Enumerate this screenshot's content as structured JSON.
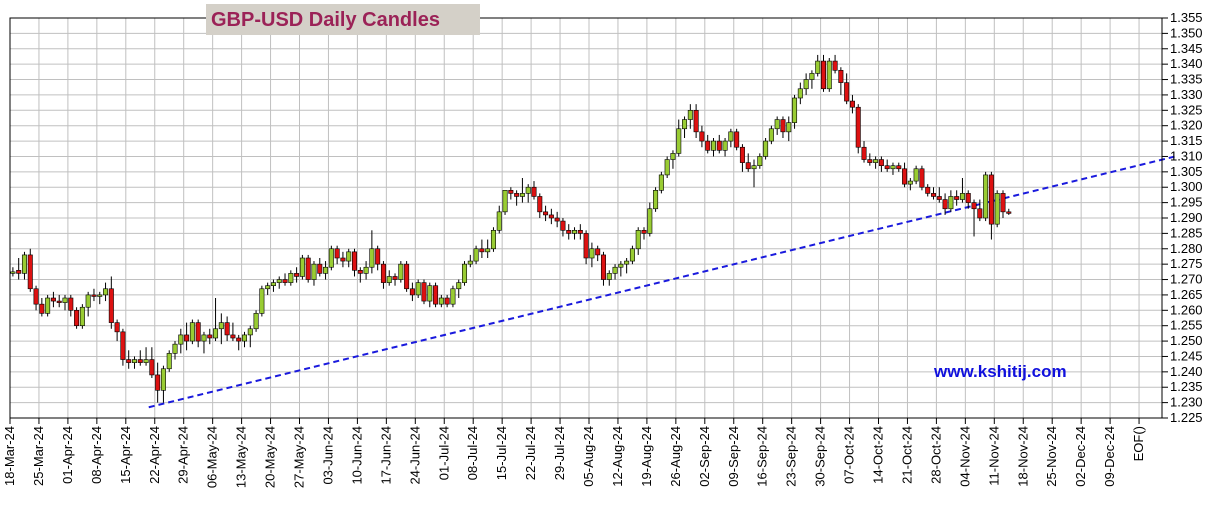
{
  "chart_data": {
    "type": "candlestick",
    "title": "GBP-USD Daily Candles",
    "watermark": "www.kshitij.com",
    "y_axis": {
      "side": "right",
      "ylim": [
        1.225,
        1.355
      ],
      "ticks": [
        "1.225",
        "1.230",
        "1.235",
        "1.240",
        "1.245",
        "1.250",
        "1.255",
        "1.260",
        "1.265",
        "1.270",
        "1.275",
        "1.280",
        "1.285",
        "1.290",
        "1.295",
        "1.300",
        "1.305",
        "1.310",
        "1.315",
        "1.320",
        "1.325",
        "1.330",
        "1.335",
        "1.340",
        "1.345",
        "1.350",
        "1.355"
      ]
    },
    "x_axis": {
      "tick_labels": [
        "18-Mar-24",
        "25-Mar-24",
        "01-Apr-24",
        "08-Apr-24",
        "15-Apr-24",
        "22-Apr-24",
        "29-Apr-24",
        "06-May-24",
        "13-May-24",
        "20-May-24",
        "27-May-24",
        "03-Jun-24",
        "10-Jun-24",
        "17-Jun-24",
        "24-Jun-24",
        "01-Jul-24",
        "08-Jul-24",
        "15-Jul-24",
        "22-Jul-24",
        "29-Jul-24",
        "05-Aug-24",
        "12-Aug-24",
        "19-Aug-24",
        "26-Aug-24",
        "02-Sep-24",
        "09-Sep-24",
        "16-Sep-24",
        "23-Sep-24",
        "30-Sep-24",
        "07-Oct-24",
        "14-Oct-24",
        "21-Oct-24",
        "28-Oct-24",
        "04-Nov-24",
        "11-Nov-24",
        "18-Nov-24",
        "25-Nov-24",
        "02-Dec-24",
        "09-Dec-24",
        "EOF()"
      ]
    },
    "grid": true,
    "colors": {
      "up": "#99cc33",
      "down": "#dd1111",
      "wick": "#000000",
      "trendline": "#1a1add",
      "grid": "#c0c0c0",
      "title_bg": "#d4d0c8"
    },
    "trendline": {
      "style": "dashed",
      "points": [
        {
          "x": "22-Apr-24",
          "y": 1.2285
        },
        {
          "x": "EOF()",
          "y": 1.31
        }
      ]
    },
    "candles": [
      {
        "o": 1.272,
        "h": 1.274,
        "l": 1.271,
        "c": 1.2725
      },
      {
        "o": 1.273,
        "h": 1.277,
        "l": 1.27,
        "c": 1.272
      },
      {
        "o": 1.272,
        "h": 1.279,
        "l": 1.27,
        "c": 1.278
      },
      {
        "o": 1.278,
        "h": 1.28,
        "l": 1.266,
        "c": 1.267
      },
      {
        "o": 1.267,
        "h": 1.268,
        "l": 1.26,
        "c": 1.262
      },
      {
        "o": 1.262,
        "h": 1.264,
        "l": 1.258,
        "c": 1.259
      },
      {
        "o": 1.259,
        "h": 1.265,
        "l": 1.258,
        "c": 1.264
      },
      {
        "o": 1.264,
        "h": 1.266,
        "l": 1.261,
        "c": 1.263
      },
      {
        "o": 1.263,
        "h": 1.265,
        "l": 1.261,
        "c": 1.2625
      },
      {
        "o": 1.2625,
        "h": 1.265,
        "l": 1.26,
        "c": 1.264
      },
      {
        "o": 1.264,
        "h": 1.265,
        "l": 1.258,
        "c": 1.26
      },
      {
        "o": 1.26,
        "h": 1.261,
        "l": 1.254,
        "c": 1.255
      },
      {
        "o": 1.255,
        "h": 1.262,
        "l": 1.254,
        "c": 1.261
      },
      {
        "o": 1.261,
        "h": 1.266,
        "l": 1.258,
        "c": 1.265
      },
      {
        "o": 1.265,
        "h": 1.267,
        "l": 1.263,
        "c": 1.2645
      },
      {
        "o": 1.2645,
        "h": 1.266,
        "l": 1.262,
        "c": 1.265
      },
      {
        "o": 1.265,
        "h": 1.269,
        "l": 1.263,
        "c": 1.267
      },
      {
        "o": 1.267,
        "h": 1.271,
        "l": 1.254,
        "c": 1.256
      },
      {
        "o": 1.256,
        "h": 1.257,
        "l": 1.25,
        "c": 1.253
      },
      {
        "o": 1.253,
        "h": 1.254,
        "l": 1.242,
        "c": 1.244
      },
      {
        "o": 1.244,
        "h": 1.247,
        "l": 1.241,
        "c": 1.243
      },
      {
        "o": 1.243,
        "h": 1.245,
        "l": 1.241,
        "c": 1.244
      },
      {
        "o": 1.244,
        "h": 1.247,
        "l": 1.242,
        "c": 1.243
      },
      {
        "o": 1.243,
        "h": 1.248,
        "l": 1.242,
        "c": 1.244
      },
      {
        "o": 1.244,
        "h": 1.248,
        "l": 1.238,
        "c": 1.239
      },
      {
        "o": 1.239,
        "h": 1.243,
        "l": 1.23,
        "c": 1.234
      },
      {
        "o": 1.234,
        "h": 1.242,
        "l": 1.23,
        "c": 1.241
      },
      {
        "o": 1.241,
        "h": 1.247,
        "l": 1.24,
        "c": 1.246
      },
      {
        "o": 1.246,
        "h": 1.25,
        "l": 1.244,
        "c": 1.249
      },
      {
        "o": 1.249,
        "h": 1.254,
        "l": 1.246,
        "c": 1.252
      },
      {
        "o": 1.252,
        "h": 1.256,
        "l": 1.247,
        "c": 1.25
      },
      {
        "o": 1.25,
        "h": 1.257,
        "l": 1.249,
        "c": 1.256
      },
      {
        "o": 1.256,
        "h": 1.257,
        "l": 1.248,
        "c": 1.25
      },
      {
        "o": 1.25,
        "h": 1.253,
        "l": 1.246,
        "c": 1.252
      },
      {
        "o": 1.252,
        "h": 1.254,
        "l": 1.249,
        "c": 1.251
      },
      {
        "o": 1.251,
        "h": 1.264,
        "l": 1.25,
        "c": 1.254
      },
      {
        "o": 1.254,
        "h": 1.259,
        "l": 1.249,
        "c": 1.256
      },
      {
        "o": 1.256,
        "h": 1.258,
        "l": 1.25,
        "c": 1.252
      },
      {
        "o": 1.252,
        "h": 1.256,
        "l": 1.25,
        "c": 1.251
      },
      {
        "o": 1.251,
        "h": 1.252,
        "l": 1.247,
        "c": 1.25
      },
      {
        "o": 1.25,
        "h": 1.253,
        "l": 1.248,
        "c": 1.252
      },
      {
        "o": 1.252,
        "h": 1.255,
        "l": 1.248,
        "c": 1.254
      },
      {
        "o": 1.254,
        "h": 1.26,
        "l": 1.253,
        "c": 1.259
      },
      {
        "o": 1.259,
        "h": 1.268,
        "l": 1.258,
        "c": 1.267
      },
      {
        "o": 1.267,
        "h": 1.269,
        "l": 1.265,
        "c": 1.268
      },
      {
        "o": 1.268,
        "h": 1.27,
        "l": 1.266,
        "c": 1.269
      },
      {
        "o": 1.269,
        "h": 1.271,
        "l": 1.267,
        "c": 1.27
      },
      {
        "o": 1.27,
        "h": 1.272,
        "l": 1.268,
        "c": 1.269
      },
      {
        "o": 1.269,
        "h": 1.273,
        "l": 1.268,
        "c": 1.272
      },
      {
        "o": 1.272,
        "h": 1.274,
        "l": 1.269,
        "c": 1.271
      },
      {
        "o": 1.271,
        "h": 1.278,
        "l": 1.27,
        "c": 1.277
      },
      {
        "o": 1.277,
        "h": 1.278,
        "l": 1.269,
        "c": 1.27
      },
      {
        "o": 1.27,
        "h": 1.276,
        "l": 1.268,
        "c": 1.275
      },
      {
        "o": 1.275,
        "h": 1.277,
        "l": 1.271,
        "c": 1.272
      },
      {
        "o": 1.272,
        "h": 1.276,
        "l": 1.27,
        "c": 1.274
      },
      {
        "o": 1.274,
        "h": 1.281,
        "l": 1.273,
        "c": 1.28
      },
      {
        "o": 1.28,
        "h": 1.281,
        "l": 1.275,
        "c": 1.277
      },
      {
        "o": 1.277,
        "h": 1.279,
        "l": 1.274,
        "c": 1.276
      },
      {
        "o": 1.276,
        "h": 1.28,
        "l": 1.274,
        "c": 1.279
      },
      {
        "o": 1.279,
        "h": 1.28,
        "l": 1.271,
        "c": 1.273
      },
      {
        "o": 1.273,
        "h": 1.274,
        "l": 1.269,
        "c": 1.272
      },
      {
        "o": 1.272,
        "h": 1.276,
        "l": 1.27,
        "c": 1.274
      },
      {
        "o": 1.274,
        "h": 1.286,
        "l": 1.272,
        "c": 1.28
      },
      {
        "o": 1.28,
        "h": 1.281,
        "l": 1.273,
        "c": 1.275
      },
      {
        "o": 1.275,
        "h": 1.276,
        "l": 1.267,
        "c": 1.269
      },
      {
        "o": 1.269,
        "h": 1.273,
        "l": 1.268,
        "c": 1.271
      },
      {
        "o": 1.271,
        "h": 1.272,
        "l": 1.268,
        "c": 1.27
      },
      {
        "o": 1.27,
        "h": 1.276,
        "l": 1.269,
        "c": 1.275
      },
      {
        "o": 1.275,
        "h": 1.276,
        "l": 1.266,
        "c": 1.267
      },
      {
        "o": 1.267,
        "h": 1.269,
        "l": 1.263,
        "c": 1.265
      },
      {
        "o": 1.265,
        "h": 1.27,
        "l": 1.264,
        "c": 1.269
      },
      {
        "o": 1.269,
        "h": 1.27,
        "l": 1.262,
        "c": 1.263
      },
      {
        "o": 1.263,
        "h": 1.269,
        "l": 1.261,
        "c": 1.268
      },
      {
        "o": 1.268,
        "h": 1.269,
        "l": 1.261,
        "c": 1.262
      },
      {
        "o": 1.262,
        "h": 1.265,
        "l": 1.261,
        "c": 1.264
      },
      {
        "o": 1.264,
        "h": 1.265,
        "l": 1.261,
        "c": 1.262
      },
      {
        "o": 1.262,
        "h": 1.268,
        "l": 1.261,
        "c": 1.267
      },
      {
        "o": 1.267,
        "h": 1.27,
        "l": 1.264,
        "c": 1.269
      },
      {
        "o": 1.269,
        "h": 1.276,
        "l": 1.268,
        "c": 1.275
      },
      {
        "o": 1.275,
        "h": 1.278,
        "l": 1.274,
        "c": 1.276
      },
      {
        "o": 1.276,
        "h": 1.281,
        "l": 1.275,
        "c": 1.28
      },
      {
        "o": 1.28,
        "h": 1.283,
        "l": 1.277,
        "c": 1.279
      },
      {
        "o": 1.279,
        "h": 1.283,
        "l": 1.277,
        "c": 1.28
      },
      {
        "o": 1.28,
        "h": 1.287,
        "l": 1.279,
        "c": 1.286
      },
      {
        "o": 1.286,
        "h": 1.294,
        "l": 1.285,
        "c": 1.292
      },
      {
        "o": 1.292,
        "h": 1.299,
        "l": 1.291,
        "c": 1.299
      },
      {
        "o": 1.299,
        "h": 1.3,
        "l": 1.296,
        "c": 1.298
      },
      {
        "o": 1.298,
        "h": 1.299,
        "l": 1.294,
        "c": 1.297
      },
      {
        "o": 1.297,
        "h": 1.303,
        "l": 1.295,
        "c": 1.298
      },
      {
        "o": 1.298,
        "h": 1.301,
        "l": 1.295,
        "c": 1.3
      },
      {
        "o": 1.3,
        "h": 1.302,
        "l": 1.296,
        "c": 1.297
      },
      {
        "o": 1.297,
        "h": 1.298,
        "l": 1.29,
        "c": 1.292
      },
      {
        "o": 1.292,
        "h": 1.294,
        "l": 1.289,
        "c": 1.291
      },
      {
        "o": 1.291,
        "h": 1.293,
        "l": 1.288,
        "c": 1.29
      },
      {
        "o": 1.29,
        "h": 1.292,
        "l": 1.287,
        "c": 1.289
      },
      {
        "o": 1.289,
        "h": 1.29,
        "l": 1.284,
        "c": 1.286
      },
      {
        "o": 1.286,
        "h": 1.288,
        "l": 1.283,
        "c": 1.285
      },
      {
        "o": 1.285,
        "h": 1.287,
        "l": 1.283,
        "c": 1.286
      },
      {
        "o": 1.286,
        "h": 1.288,
        "l": 1.283,
        "c": 1.285
      },
      {
        "o": 1.285,
        "h": 1.286,
        "l": 1.275,
        "c": 1.277
      },
      {
        "o": 1.277,
        "h": 1.282,
        "l": 1.274,
        "c": 1.28
      },
      {
        "o": 1.28,
        "h": 1.281,
        "l": 1.276,
        "c": 1.278
      },
      {
        "o": 1.278,
        "h": 1.279,
        "l": 1.268,
        "c": 1.27
      },
      {
        "o": 1.27,
        "h": 1.273,
        "l": 1.268,
        "c": 1.272
      },
      {
        "o": 1.272,
        "h": 1.275,
        "l": 1.27,
        "c": 1.274
      },
      {
        "o": 1.274,
        "h": 1.276,
        "l": 1.271,
        "c": 1.275
      },
      {
        "o": 1.275,
        "h": 1.277,
        "l": 1.272,
        "c": 1.276
      },
      {
        "o": 1.276,
        "h": 1.281,
        "l": 1.275,
        "c": 1.28
      },
      {
        "o": 1.28,
        "h": 1.287,
        "l": 1.278,
        "c": 1.286
      },
      {
        "o": 1.286,
        "h": 1.287,
        "l": 1.283,
        "c": 1.285
      },
      {
        "o": 1.285,
        "h": 1.295,
        "l": 1.284,
        "c": 1.293
      },
      {
        "o": 1.293,
        "h": 1.3,
        "l": 1.292,
        "c": 1.299
      },
      {
        "o": 1.299,
        "h": 1.305,
        "l": 1.298,
        "c": 1.304
      },
      {
        "o": 1.304,
        "h": 1.31,
        "l": 1.303,
        "c": 1.309
      },
      {
        "o": 1.309,
        "h": 1.312,
        "l": 1.306,
        "c": 1.311
      },
      {
        "o": 1.311,
        "h": 1.322,
        "l": 1.31,
        "c": 1.319
      },
      {
        "o": 1.319,
        "h": 1.323,
        "l": 1.316,
        "c": 1.322
      },
      {
        "o": 1.322,
        "h": 1.327,
        "l": 1.319,
        "c": 1.325
      },
      {
        "o": 1.325,
        "h": 1.327,
        "l": 1.316,
        "c": 1.318
      },
      {
        "o": 1.318,
        "h": 1.32,
        "l": 1.313,
        "c": 1.315
      },
      {
        "o": 1.315,
        "h": 1.317,
        "l": 1.311,
        "c": 1.312
      },
      {
        "o": 1.312,
        "h": 1.316,
        "l": 1.31,
        "c": 1.315
      },
      {
        "o": 1.315,
        "h": 1.317,
        "l": 1.311,
        "c": 1.312
      },
      {
        "o": 1.312,
        "h": 1.316,
        "l": 1.31,
        "c": 1.315
      },
      {
        "o": 1.315,
        "h": 1.319,
        "l": 1.313,
        "c": 1.318
      },
      {
        "o": 1.318,
        "h": 1.319,
        "l": 1.312,
        "c": 1.313
      },
      {
        "o": 1.313,
        "h": 1.314,
        "l": 1.305,
        "c": 1.308
      },
      {
        "o": 1.308,
        "h": 1.311,
        "l": 1.305,
        "c": 1.306
      },
      {
        "o": 1.306,
        "h": 1.309,
        "l": 1.3,
        "c": 1.307
      },
      {
        "o": 1.307,
        "h": 1.311,
        "l": 1.306,
        "c": 1.31
      },
      {
        "o": 1.31,
        "h": 1.316,
        "l": 1.309,
        "c": 1.315
      },
      {
        "o": 1.315,
        "h": 1.32,
        "l": 1.314,
        "c": 1.319
      },
      {
        "o": 1.319,
        "h": 1.323,
        "l": 1.317,
        "c": 1.322
      },
      {
        "o": 1.322,
        "h": 1.323,
        "l": 1.316,
        "c": 1.318
      },
      {
        "o": 1.318,
        "h": 1.323,
        "l": 1.315,
        "c": 1.321
      },
      {
        "o": 1.321,
        "h": 1.33,
        "l": 1.319,
        "c": 1.329
      },
      {
        "o": 1.329,
        "h": 1.334,
        "l": 1.327,
        "c": 1.332
      },
      {
        "o": 1.332,
        "h": 1.337,
        "l": 1.33,
        "c": 1.335
      },
      {
        "o": 1.335,
        "h": 1.338,
        "l": 1.332,
        "c": 1.337
      },
      {
        "o": 1.337,
        "h": 1.343,
        "l": 1.336,
        "c": 1.341
      },
      {
        "o": 1.341,
        "h": 1.343,
        "l": 1.331,
        "c": 1.332
      },
      {
        "o": 1.332,
        "h": 1.342,
        "l": 1.331,
        "c": 1.341
      },
      {
        "o": 1.341,
        "h": 1.343,
        "l": 1.337,
        "c": 1.338
      },
      {
        "o": 1.338,
        "h": 1.339,
        "l": 1.33,
        "c": 1.334
      },
      {
        "o": 1.334,
        "h": 1.337,
        "l": 1.327,
        "c": 1.328
      },
      {
        "o": 1.328,
        "h": 1.33,
        "l": 1.324,
        "c": 1.326
      },
      {
        "o": 1.326,
        "h": 1.327,
        "l": 1.311,
        "c": 1.313
      },
      {
        "o": 1.313,
        "h": 1.315,
        "l": 1.308,
        "c": 1.309
      },
      {
        "o": 1.309,
        "h": 1.311,
        "l": 1.307,
        "c": 1.308
      },
      {
        "o": 1.308,
        "h": 1.31,
        "l": 1.306,
        "c": 1.309
      },
      {
        "o": 1.309,
        "h": 1.31,
        "l": 1.305,
        "c": 1.307
      },
      {
        "o": 1.307,
        "h": 1.309,
        "l": 1.305,
        "c": 1.306
      },
      {
        "o": 1.306,
        "h": 1.308,
        "l": 1.304,
        "c": 1.307
      },
      {
        "o": 1.307,
        "h": 1.308,
        "l": 1.305,
        "c": 1.306
      },
      {
        "o": 1.306,
        "h": 1.308,
        "l": 1.3,
        "c": 1.301
      },
      {
        "o": 1.301,
        "h": 1.303,
        "l": 1.299,
        "c": 1.302
      },
      {
        "o": 1.302,
        "h": 1.307,
        "l": 1.301,
        "c": 1.306
      },
      {
        "o": 1.306,
        "h": 1.307,
        "l": 1.299,
        "c": 1.3
      },
      {
        "o": 1.3,
        "h": 1.301,
        "l": 1.297,
        "c": 1.298
      },
      {
        "o": 1.298,
        "h": 1.3,
        "l": 1.296,
        "c": 1.297
      },
      {
        "o": 1.297,
        "h": 1.3,
        "l": 1.295,
        "c": 1.296
      },
      {
        "o": 1.296,
        "h": 1.298,
        "l": 1.291,
        "c": 1.293
      },
      {
        "o": 1.293,
        "h": 1.299,
        "l": 1.292,
        "c": 1.297
      },
      {
        "o": 1.297,
        "h": 1.299,
        "l": 1.294,
        "c": 1.296
      },
      {
        "o": 1.296,
        "h": 1.303,
        "l": 1.295,
        "c": 1.298
      },
      {
        "o": 1.298,
        "h": 1.299,
        "l": 1.293,
        "c": 1.295
      },
      {
        "o": 1.295,
        "h": 1.296,
        "l": 1.284,
        "c": 1.293
      },
      {
        "o": 1.293,
        "h": 1.296,
        "l": 1.289,
        "c": 1.29
      },
      {
        "o": 1.29,
        "h": 1.305,
        "l": 1.289,
        "c": 1.304
      },
      {
        "o": 1.304,
        "h": 1.305,
        "l": 1.283,
        "c": 1.288
      },
      {
        "o": 1.288,
        "h": 1.299,
        "l": 1.287,
        "c": 1.298
      },
      {
        "o": 1.298,
        "h": 1.299,
        "l": 1.29,
        "c": 1.292
      },
      {
        "o": 1.292,
        "h": 1.293,
        "l": 1.291,
        "c": 1.2915
      }
    ]
  }
}
